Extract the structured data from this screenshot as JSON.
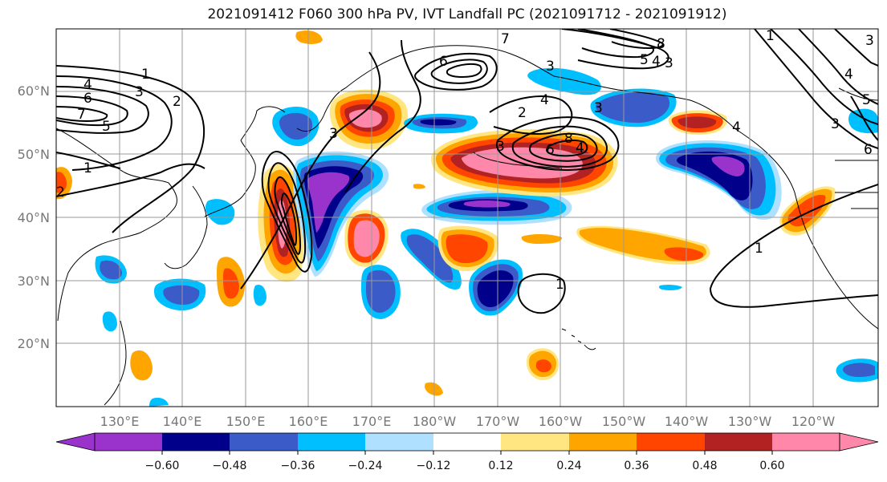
{
  "title": "2021091412 F060 300 hPa PV, IVT Landfall PC (2021091712 - 2021091912)",
  "map": {
    "lat_labels": [
      "20°N",
      "30°N",
      "40°N",
      "50°N",
      "60°N"
    ],
    "lon_labels": [
      "130°E",
      "140°E",
      "150°E",
      "160°E",
      "170°E",
      "180°W",
      "170°W",
      "160°W",
      "150°W",
      "140°W",
      "130°W",
      "120°W"
    ],
    "pv_contour_labels": [
      "1",
      "2",
      "3",
      "4",
      "5",
      "6",
      "7",
      "8"
    ]
  },
  "colorbar": {
    "tick_labels": [
      "−0.60",
      "−0.48",
      "−0.36",
      "−0.24",
      "−0.12",
      "0.12",
      "0.24",
      "0.36",
      "0.48",
      "0.60"
    ],
    "colors": [
      "#9933cc",
      "#00008b",
      "#3a5bc8",
      "#00bfff",
      "#b0e0ff",
      "#ffffff",
      "#ffe680",
      "#ffa500",
      "#ff4500",
      "#b22222",
      "#ff88aa"
    ]
  },
  "colors": {
    "contour": "#000000",
    "grid": "#9a9a9a",
    "coast": "#000000",
    "axis_label": "#777777"
  }
}
